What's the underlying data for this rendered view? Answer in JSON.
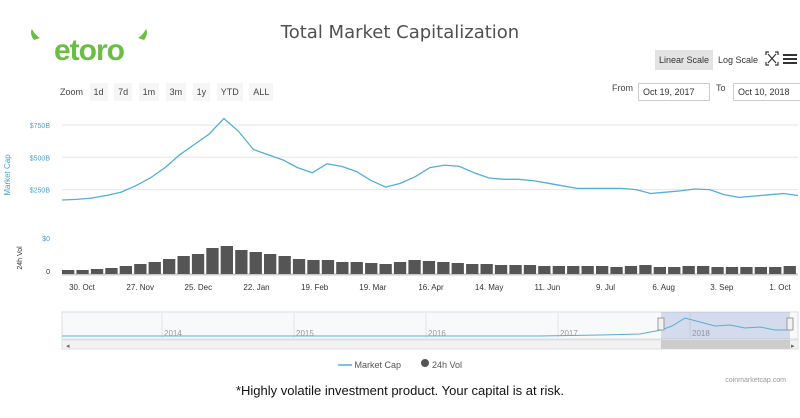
{
  "brand": {
    "name": "etoro",
    "color": "#6cbd45"
  },
  "chart_title": "Total Market Capitalization",
  "scale": {
    "linear_label": "Linear Scale",
    "log_label": "Log Scale",
    "active": "linear"
  },
  "icons": {
    "fullscreen": "fullscreen-icon",
    "menu": "hamburger-menu-icon"
  },
  "zoom": {
    "label": "Zoom",
    "options": [
      "1d",
      "7d",
      "1m",
      "3m",
      "1y",
      "YTD",
      "ALL"
    ]
  },
  "range": {
    "from_label": "From",
    "from_value": "Oct 19, 2017",
    "to_label": "To",
    "to_value": "Oct 10, 2018"
  },
  "legend": {
    "market_cap": "Market Cap",
    "vol": "24h Vol"
  },
  "credit": "coinmarketcap.com",
  "disclaimer": "*Highly volatile investment product. Your capital is at risk.",
  "colors": {
    "line": "#55aed6",
    "volume": "#555555",
    "axis_text": "#4aa3d1"
  },
  "chart_data": {
    "type": "line",
    "title": "Total Market Capitalization",
    "ylabel": "Market Cap",
    "ylabel2": "24h Vol",
    "yticks": [
      "$750B",
      "$500B",
      "$250B"
    ],
    "vol_ticks": [
      "$0",
      "0"
    ],
    "ylim": [
      0,
      850
    ],
    "x_ticks": [
      "30. Oct",
      "27. Nov",
      "25. Dec",
      "22. Jan",
      "19. Feb",
      "19. Mar",
      "16. Apr",
      "14. May",
      "11. Jun",
      "9. Jul",
      "6. Aug",
      "3. Sep",
      "1. Oct"
    ],
    "series": [
      {
        "name": "Market Cap",
        "unit": "billion USD",
        "x_start": "2017-10-19",
        "step_days": 7,
        "values": [
          170,
          175,
          185,
          205,
          230,
          280,
          340,
          420,
          520,
          600,
          680,
          800,
          700,
          560,
          520,
          480,
          420,
          380,
          450,
          430,
          390,
          320,
          270,
          300,
          350,
          420,
          440,
          430,
          380,
          340,
          330,
          330,
          320,
          300,
          280,
          260,
          260,
          260,
          260,
          250,
          220,
          230,
          240,
          255,
          250,
          210,
          190,
          200,
          210,
          220,
          205
        ]
      },
      {
        "name": "24h Vol",
        "unit": "relative",
        "values": [
          4,
          4,
          5,
          6,
          8,
          10,
          12,
          15,
          18,
          20,
          26,
          28,
          24,
          22,
          20,
          18,
          15,
          14,
          14,
          12,
          12,
          11,
          10,
          12,
          14,
          13,
          12,
          11,
          10,
          10,
          9,
          9,
          9,
          8,
          8,
          8,
          8,
          8,
          7,
          8,
          9,
          7,
          7,
          8,
          8,
          7,
          7,
          7,
          7,
          7,
          8
        ]
      }
    ],
    "navigator": {
      "year_labels": [
        "2014",
        "2015",
        "2016",
        "2017",
        "2018"
      ],
      "selection": [
        "Oct 19, 2017",
        "Oct 10, 2018"
      ]
    },
    "grid": true,
    "legend_position": "bottom-center"
  }
}
